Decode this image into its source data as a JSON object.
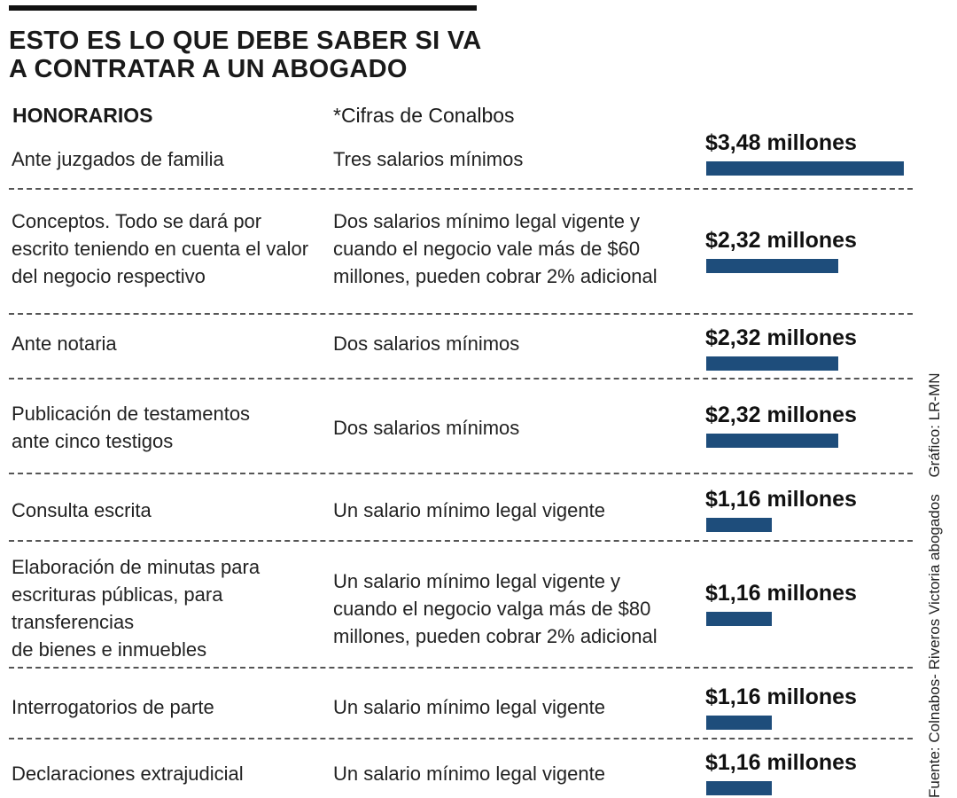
{
  "title_line1": "ESTO ES LO QUE DEBE SABER SI VA",
  "title_line2": "A CONTRATAR A UN ABOGADO",
  "col_head_left": "HONORARIOS",
  "col_head_mid": "*Cifras de Conalbos",
  "source": "Fuente: Colnabos- Riveros Victoria abogados",
  "credit": "Gráfico: LR-MN",
  "colors": {
    "bar": "#1e4d7b",
    "text": "#1a1a1a"
  },
  "chart_data": {
    "type": "bar",
    "title": "ESTO ES LO QUE DEBE SABER SI VA A CONTRATAR A UN ABOGADO",
    "unit": "millones",
    "xlim": [
      0,
      3.48
    ],
    "categories": [
      "Ante juzgados de familia",
      "Conceptos. Todo se dará por escrito teniendo en cuenta el valor del negocio respectivo",
      "Ante notaria",
      "Publicación de testamentos ante cinco testigos",
      "Consulta escrita",
      "Elaboración de minutas para escrituras públicas, para transferencias de bienes e inmuebles",
      "Interrogatorios de parte",
      "Declaraciones extrajudicial"
    ],
    "values": [
      3.48,
      2.32,
      2.32,
      2.32,
      1.16,
      1.16,
      1.16,
      1.16
    ],
    "rows": [
      {
        "label_lines": [
          "Ante juzgados de familia"
        ],
        "desc_lines": [
          "Tres salarios mínimos"
        ],
        "value": 3.48,
        "amount_label": "$3,48 millones"
      },
      {
        "label_lines": [
          "Conceptos. Todo se dará por",
          "escrito teniendo en cuenta el valor",
          "del negocio respectivo"
        ],
        "desc_lines": [
          "Dos salarios mínimo legal vigente y",
          "cuando el negocio vale más de $60",
          "millones, pueden cobrar 2% adicional"
        ],
        "value": 2.32,
        "amount_label": "$2,32 millones"
      },
      {
        "label_lines": [
          "Ante notaria"
        ],
        "desc_lines": [
          "Dos salarios mínimos"
        ],
        "value": 2.32,
        "amount_label": "$2,32 millones"
      },
      {
        "label_lines": [
          "Publicación de testamentos",
          "ante cinco testigos"
        ],
        "desc_lines": [
          "Dos salarios mínimos"
        ],
        "value": 2.32,
        "amount_label": "$2,32 millones"
      },
      {
        "label_lines": [
          "Consulta escrita"
        ],
        "desc_lines": [
          "Un salario mínimo legal vigente"
        ],
        "value": 1.16,
        "amount_label": "$1,16 millones"
      },
      {
        "label_lines": [
          "Elaboración de minutas para",
          "escrituras públicas, para transferencias",
          "de bienes e inmuebles"
        ],
        "desc_lines": [
          "Un salario mínimo legal vigente y",
          "cuando el negocio valga más de $80",
          "millones, pueden cobrar 2% adicional"
        ],
        "value": 1.16,
        "amount_label": "$1,16 millones"
      },
      {
        "label_lines": [
          "Interrogatorios de parte"
        ],
        "desc_lines": [
          "Un salario mínimo legal vigente"
        ],
        "value": 1.16,
        "amount_label": "$1,16 millones"
      },
      {
        "label_lines": [
          "Declaraciones extrajudicial"
        ],
        "desc_lines": [
          "Un salario mínimo legal vigente"
        ],
        "value": 1.16,
        "amount_label": "$1,16 millones"
      }
    ]
  }
}
